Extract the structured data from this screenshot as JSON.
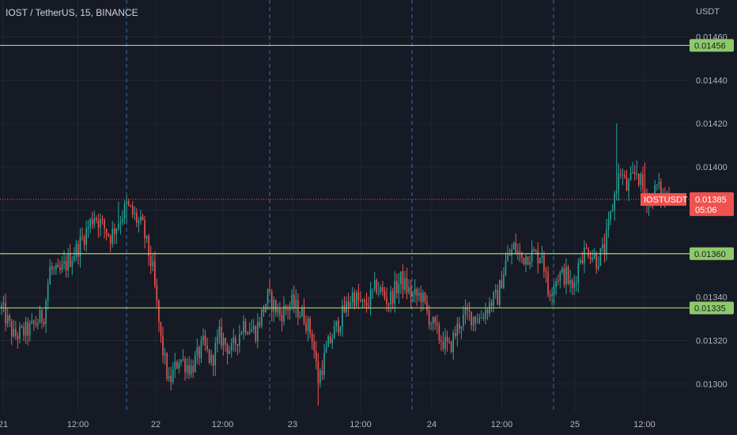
{
  "title": "IOST / TetherUS, 15, BINANCE",
  "currency": "USDT",
  "colors": {
    "background": "#161a25",
    "grid": "#232632",
    "up": "#26a69a",
    "down": "#ef5350",
    "level": "#a5d67a",
    "level_badge": "#8ec96a",
    "session_line": "#3a6ea8",
    "price_line": "#ef5350",
    "axis_text": "#b2b5be"
  },
  "chart_data": {
    "type": "candlestick",
    "title": "IOST / TetherUS, 15, BINANCE",
    "ylabel": "USDT",
    "ylim": [
      0.01287,
      0.01466
    ],
    "y_ticks": [
      "0.01460",
      "0.01440",
      "0.01420",
      "0.01400",
      "0.01380",
      "0.01360",
      "0.01340",
      "0.01320",
      "0.01300"
    ],
    "x_ticks": [
      "21",
      "12:00",
      "22",
      "12:00",
      "23",
      "12:00",
      "24",
      "12:00",
      "25",
      "12:00"
    ],
    "horizontal_levels": [
      0.01456,
      0.0136,
      0.01335
    ],
    "level_labels": [
      "0.01456",
      "0.01360",
      "0.01335"
    ],
    "last_price": 0.01385,
    "last_price_label": "0.01385",
    "symbol": "IOSTUSDT",
    "countdown": "05:06",
    "grid": true,
    "price_path": [
      [
        0,
        0.01335
      ],
      [
        6,
        0.01322
      ],
      [
        14,
        0.01325
      ],
      [
        21,
        0.01332
      ],
      [
        24,
        0.01353
      ],
      [
        28,
        0.0135
      ],
      [
        38,
        0.01363
      ],
      [
        46,
        0.01378
      ],
      [
        54,
        0.01368
      ],
      [
        62,
        0.01382
      ],
      [
        70,
        0.01372
      ],
      [
        75,
        0.01352
      ],
      [
        79,
        0.0132
      ],
      [
        83,
        0.013
      ],
      [
        88,
        0.01312
      ],
      [
        94,
        0.01307
      ],
      [
        100,
        0.01318
      ],
      [
        104,
        0.0131
      ],
      [
        108,
        0.01322
      ],
      [
        114,
        0.01315
      ],
      [
        120,
        0.01328
      ],
      [
        126,
        0.01324
      ],
      [
        132,
        0.0134
      ],
      [
        138,
        0.01332
      ],
      [
        144,
        0.01337
      ],
      [
        150,
        0.01331
      ],
      [
        154,
        0.01322
      ],
      [
        157,
        0.01302
      ],
      [
        162,
        0.01318
      ],
      [
        168,
        0.0133
      ],
      [
        174,
        0.01341
      ],
      [
        180,
        0.01335
      ],
      [
        186,
        0.01345
      ],
      [
        192,
        0.01338
      ],
      [
        198,
        0.01348
      ],
      [
        204,
        0.0134
      ],
      [
        208,
        0.01341
      ],
      [
        211,
        0.01333
      ],
      [
        216,
        0.01323
      ],
      [
        222,
        0.01316
      ],
      [
        227,
        0.01328
      ],
      [
        231,
        0.01332
      ],
      [
        237,
        0.0133
      ],
      [
        243,
        0.01338
      ],
      [
        246,
        0.0134
      ],
      [
        250,
        0.01356
      ],
      [
        254,
        0.01363
      ],
      [
        258,
        0.01358
      ],
      [
        262,
        0.0136
      ],
      [
        266,
        0.01359
      ],
      [
        268,
        0.01361
      ],
      [
        271,
        0.01342
      ],
      [
        276,
        0.0135
      ],
      [
        280,
        0.0135
      ],
      [
        283,
        0.01343
      ],
      [
        287,
        0.01359
      ],
      [
        291,
        0.01362
      ],
      [
        295,
        0.01357
      ],
      [
        299,
        0.01362
      ],
      [
        305,
        0.01392
      ],
      [
        307,
        0.01398
      ],
      [
        310,
        0.0139
      ],
      [
        315,
        0.01398
      ],
      [
        319,
        0.01387
      ],
      [
        322,
        0.01384
      ],
      [
        325,
        0.01391
      ],
      [
        328,
        0.01386
      ],
      [
        331,
        0.01385
      ]
    ]
  }
}
